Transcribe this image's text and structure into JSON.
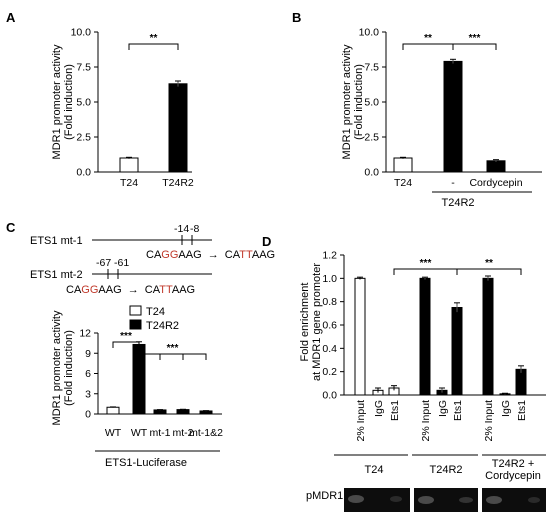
{
  "chart_data": [
    {
      "panel": "A",
      "type": "bar",
      "ylabel": "MDR1 promoter activity",
      "ylabel2": "(Fold induction)",
      "ylim": [
        0,
        10
      ],
      "yticks": [
        "0.0",
        "2.5",
        "5.0",
        "7.5",
        "10.0"
      ],
      "categories": [
        "T24",
        "T24R2"
      ],
      "values": [
        1.0,
        6.3
      ],
      "errors": [
        0.05,
        0.2
      ],
      "fills": [
        "white",
        "black"
      ],
      "significance": [
        {
          "from": 0,
          "to": 1,
          "label": "**"
        }
      ]
    },
    {
      "panel": "B",
      "type": "bar",
      "ylabel": "MDR1 promoter activity",
      "ylabel2": "(Fold induction)",
      "ylim": [
        0,
        10
      ],
      "yticks": [
        "0.0",
        "2.5",
        "5.0",
        "7.5",
        "10.0"
      ],
      "categories": [
        "T24",
        "-",
        "Cordycepin"
      ],
      "group_label": "T24R2",
      "values": [
        1.0,
        7.9,
        0.8
      ],
      "errors": [
        0.05,
        0.15,
        0.08
      ],
      "fills": [
        "white",
        "black",
        "black"
      ],
      "significance": [
        {
          "from": 0,
          "to": 1,
          "label": "**"
        },
        {
          "from": 1,
          "to": 2,
          "label": "***"
        }
      ]
    },
    {
      "panel": "C",
      "type": "bar",
      "ylabel": "MDR1 promoter activity",
      "ylabel2": "(Fold induction)",
      "ylim": [
        0,
        12
      ],
      "yticks": [
        "0",
        "3",
        "6",
        "9",
        "12"
      ],
      "categories": [
        "WT",
        "WT",
        "mt-1",
        "mt-2",
        "mt-1&2"
      ],
      "xlabel": "ETS1-Luciferase",
      "values": [
        1.0,
        10.3,
        0.6,
        0.65,
        0.45
      ],
      "errors": [
        0.05,
        0.4,
        0.05,
        0.05,
        0.05
      ],
      "fills": [
        "white",
        "black",
        "black",
        "black",
        "black"
      ],
      "legend": [
        {
          "name": "T24",
          "fill": "white"
        },
        {
          "name": "T24R2",
          "fill": "black"
        }
      ],
      "significance": [
        {
          "label": "***"
        },
        {
          "label": "***"
        }
      ]
    },
    {
      "panel": "D",
      "type": "bar",
      "ylabel": "Fold enrichment",
      "ylabel2": "at MDR1 gene promoter",
      "ylim": [
        0,
        1.2
      ],
      "yticks": [
        "0.0",
        "0.2",
        "0.4",
        "0.6",
        "0.8",
        "1.0",
        "1.2"
      ],
      "categories": [
        "2% Input",
        "IgG",
        "Ets1",
        "2% Input",
        "IgG",
        "Ets1",
        "2% Input",
        "IgG",
        "Ets1"
      ],
      "groups": [
        "T24",
        "T24R2",
        "T24R2 +",
        "Cordycepin"
      ],
      "values": [
        1.0,
        0.04,
        0.06,
        1.0,
        0.04,
        0.75,
        1.0,
        0.01,
        0.22
      ],
      "errors": [
        0.01,
        0.02,
        0.02,
        0.01,
        0.02,
        0.04,
        0.02,
        0.005,
        0.03
      ],
      "fills": [
        "white",
        "white",
        "white",
        "black",
        "black",
        "black",
        "black",
        "black",
        "black"
      ],
      "significance": [
        {
          "label": "***"
        },
        {
          "label": "**"
        }
      ],
      "gel_label": "pMDR1"
    }
  ],
  "diagram": {
    "mt1_label": "ETS1 mt-1",
    "mt1_pos": [
      "-14",
      "-8"
    ],
    "mt1_seq_from_a": "CA",
    "mt1_seq_from_b": "GG",
    "mt1_seq_from_c": "AAG",
    "arrow": "→",
    "mt1_seq_to_a": "CA",
    "mt1_seq_to_b": "TT",
    "mt1_seq_to_c": "AAG",
    "mt2_label": "ETS1 mt-2",
    "mt2_pos": [
      "-67",
      "-61"
    ]
  }
}
